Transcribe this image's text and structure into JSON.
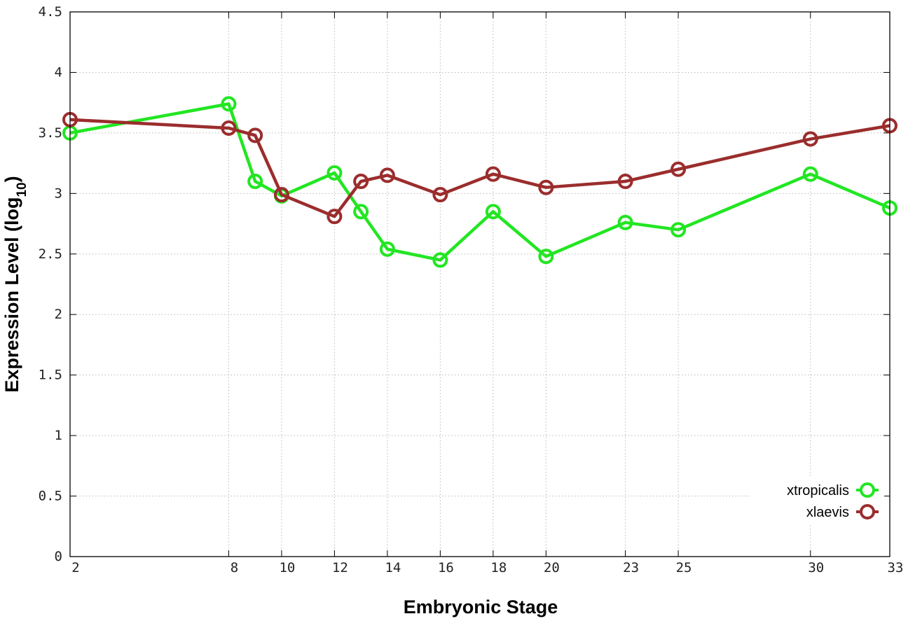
{
  "chart_data": {
    "type": "line",
    "xlabel": "Embryonic Stage",
    "ylabel_main": "Expression Level (log",
    "ylabel_sub": "10",
    "ylabel_close": ")",
    "xlim": [
      2,
      33
    ],
    "ylim": [
      0,
      4.5
    ],
    "x_ticks": [
      2,
      8,
      10,
      12,
      14,
      16,
      18,
      20,
      23,
      25,
      30,
      33
    ],
    "y_ticks": [
      0,
      0.5,
      1,
      1.5,
      2,
      2.5,
      3,
      3.5,
      4,
      4.5
    ],
    "y_tick_labels": [
      "0",
      "0.5",
      "1",
      "1.5",
      "2",
      "2.5",
      "3",
      "3.5",
      "4",
      "4.5"
    ],
    "grid": true,
    "legend_position": "bottom-right",
    "series": [
      {
        "name": "xtropicalis",
        "color": "#22e622",
        "x": [
          2,
          8,
          9,
          10,
          12,
          13,
          14,
          16,
          18,
          20,
          23,
          25,
          30,
          33
        ],
        "y": [
          3.5,
          3.74,
          3.1,
          2.98,
          3.17,
          2.85,
          2.54,
          2.45,
          2.85,
          2.48,
          2.76,
          2.7,
          3.16,
          2.88
        ]
      },
      {
        "name": "xlaevis",
        "color": "#9b2d2d",
        "x": [
          2,
          8,
          9,
          10,
          12,
          13,
          14,
          16,
          18,
          20,
          23,
          25,
          30,
          33
        ],
        "y": [
          3.61,
          3.54,
          3.48,
          2.99,
          2.81,
          3.1,
          3.15,
          2.99,
          3.16,
          3.05,
          3.1,
          3.2,
          3.45,
          3.56
        ]
      }
    ]
  }
}
